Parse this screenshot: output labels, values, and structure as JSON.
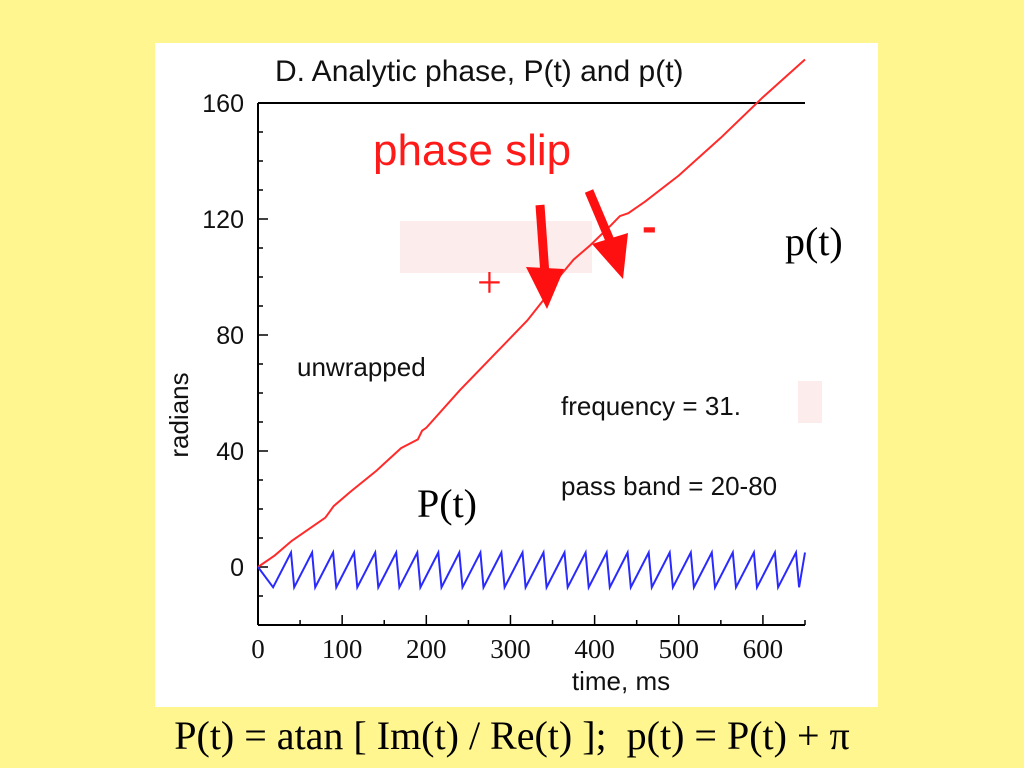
{
  "chart_data": {
    "type": "line",
    "title": "D. Analytic phase, P(t) and p(t)",
    "xlabel": "time, ms",
    "ylabel": "radians",
    "xlim": [
      0,
      650
    ],
    "ylim": [
      -20,
      160
    ],
    "xticks": [
      0,
      100,
      200,
      300,
      400,
      500,
      600
    ],
    "yticks": [
      0,
      40,
      80,
      120,
      160
    ],
    "grid": false,
    "series": [
      {
        "name": "p(t)",
        "color": "#ff2a2a",
        "x": [
          0,
          20,
          40,
          60,
          80,
          85,
          90,
          110,
          140,
          170,
          190,
          195,
          200,
          240,
          280,
          320,
          350,
          352,
          355,
          375,
          395,
          420,
          430,
          440,
          460,
          500,
          550,
          600,
          650
        ],
        "y": [
          0,
          4,
          9,
          13,
          17,
          19,
          21,
          26,
          33,
          41,
          44,
          47,
          48,
          61,
          73,
          85,
          96,
          98,
          99,
          106,
          111,
          118,
          121,
          122,
          126,
          135,
          148,
          162,
          175
        ]
      },
      {
        "name": "P(t)",
        "color": "#2a2aff",
        "x": [
          0,
          650
        ],
        "y": [
          -1,
          -1
        ],
        "period": 25,
        "amplitude": 6
      }
    ],
    "annotations": {
      "unwrapped": "unwrapped",
      "phase_slip": "phase slip",
      "frequency": "frequency = 31.",
      "pass_band": "pass band = 20-80",
      "p_label": "p(t)",
      "P_label": "P(t)",
      "plus": "+",
      "minus": "-"
    }
  },
  "formula": "P(t) = atan [ Im(t) / Re(t) ];  p(t) = P(t) + π",
  "colors": {
    "background": "#fff68f",
    "panel": "#ffffff",
    "arrow": "#ff1010",
    "highlight": "#fdecec"
  }
}
